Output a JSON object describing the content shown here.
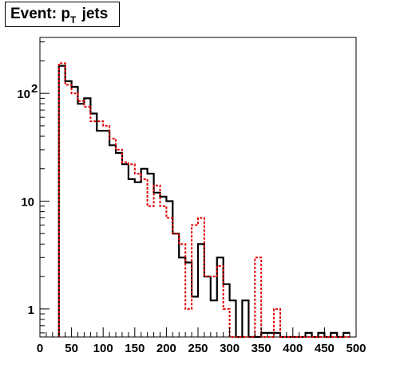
{
  "title": {
    "main": "Event: p",
    "subscript": "T",
    "suffix": " jets"
  },
  "chart_data": {
    "type": "histogram",
    "title": "Event: p_T jets",
    "xlabel": "",
    "ylabel": "",
    "xlim": [
      0,
      500
    ],
    "ylim": [
      0.55,
      330
    ],
    "ylog": true,
    "bin_width": 10,
    "xticks": [
      "0",
      "50",
      "100",
      "150",
      "200",
      "250",
      "300",
      "350",
      "400",
      "450",
      "500"
    ],
    "yticks": [
      {
        "value": 1,
        "label": "1"
      },
      {
        "value": 10,
        "label": "10"
      },
      {
        "value": 100,
        "label": "10",
        "exp": "2"
      }
    ],
    "series": [
      {
        "style": "solid",
        "color": "#000000",
        "bin_starts": [
          30,
          40,
          50,
          60,
          70,
          80,
          90,
          100,
          110,
          120,
          130,
          140,
          150,
          160,
          170,
          180,
          190,
          200,
          210,
          220,
          230,
          240,
          250,
          260,
          270,
          280,
          290,
          300,
          310,
          320,
          330,
          340,
          350,
          360,
          370,
          380,
          390,
          400,
          410,
          420,
          430,
          440,
          450,
          460,
          470,
          480
        ],
        "values": [
          180,
          130,
          115,
          80,
          90,
          65,
          45,
          45,
          33,
          28,
          22,
          16,
          15,
          20,
          18,
          12,
          11,
          10,
          5,
          3,
          2.7,
          1.3,
          4,
          2,
          1.2,
          3,
          1.7,
          1.2,
          0.5,
          1.2,
          0.5,
          0.5,
          0.6,
          0.6,
          0.6,
          0.5,
          0.5,
          0.5,
          0.5,
          0.6,
          0.5,
          0.6,
          0.5,
          0.6,
          0.5,
          0.6
        ]
      },
      {
        "style": "dashed",
        "color": "#e00000",
        "bin_starts": [
          30,
          40,
          50,
          60,
          70,
          80,
          90,
          100,
          110,
          120,
          130,
          140,
          150,
          160,
          170,
          180,
          190,
          200,
          210,
          220,
          230,
          240,
          250,
          260,
          270,
          280,
          290,
          300,
          310,
          320,
          330,
          340,
          350,
          360,
          370,
          380,
          390,
          400,
          410,
          420,
          430,
          440,
          450,
          460,
          470,
          480
        ],
        "values": [
          190,
          120,
          100,
          85,
          75,
          55,
          55,
          50,
          38,
          30,
          23,
          22,
          18,
          16,
          9,
          14,
          9,
          7,
          5,
          4,
          1,
          6,
          7,
          2,
          2,
          2.5,
          1,
          0.5,
          0.5,
          0.5,
          0.5,
          3,
          0.5,
          0.5,
          1,
          0.5,
          0.5,
          0.5,
          0.5,
          0.5,
          0.5,
          0.5,
          0.5,
          0.5,
          0.5,
          0.5
        ]
      }
    ]
  }
}
